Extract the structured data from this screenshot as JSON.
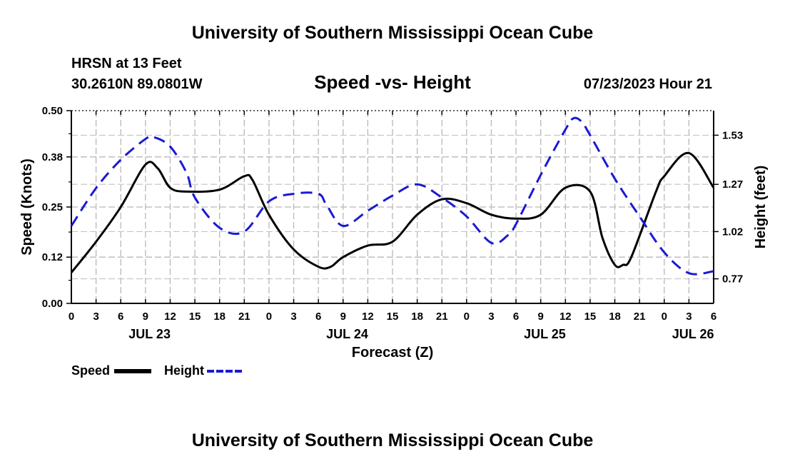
{
  "header": {
    "title_top": "University of Southern Mississippi Ocean Cube",
    "title_bottom": "University of Southern Mississippi Ocean Cube",
    "station": "HRSN at 13 Feet",
    "location": "30.2610N  89.0801W",
    "datetime": "07/23/2023 Hour 21"
  },
  "chart_data": {
    "type": "line",
    "title": "Speed -vs- Height",
    "xlabel": "Forecast (Z)",
    "ylabel": "Speed (Knots)",
    "ylabel_right": "Height (feet)",
    "x_unit": "hours from 00Z JUL 23",
    "xlim": [
      0,
      78
    ],
    "ylim": [
      0,
      0.5
    ],
    "ylim_right": [
      0.64,
      1.66
    ],
    "x_ticks": [
      0,
      3,
      6,
      9,
      12,
      15,
      18,
      21,
      24,
      27,
      30,
      33,
      36,
      39,
      42,
      45,
      48,
      51,
      54,
      57,
      60,
      63,
      66,
      69,
      72,
      75,
      78
    ],
    "x_tick_labels": [
      "0",
      "3",
      "6",
      "9",
      "12",
      "15",
      "18",
      "21",
      "0",
      "3",
      "6",
      "9",
      "12",
      "15",
      "18",
      "21",
      "0",
      "3",
      "6",
      "9",
      "12",
      "15",
      "18",
      "21",
      "0",
      "3",
      "6"
    ],
    "date_labels": [
      {
        "x": 9.5,
        "label": "JUL 23"
      },
      {
        "x": 33.5,
        "label": "JUL 24"
      },
      {
        "x": 57.5,
        "label": "JUL 25"
      },
      {
        "x": 75.5,
        "label": "JUL 26"
      }
    ],
    "y_ticks": [
      0.0,
      0.12,
      0.25,
      0.38,
      0.5
    ],
    "y_tick_labels": [
      "0.00",
      "0.12",
      "0.25",
      "0.38",
      "0.50"
    ],
    "y_ticks_right": [
      0.77,
      1.02,
      1.27,
      1.53
    ],
    "y_tick_labels_right": [
      "0.77",
      "1.02",
      "1.27",
      "1.53"
    ],
    "grid": true,
    "series": [
      {
        "name": "Speed",
        "axis": "left",
        "color": "#000000",
        "dash": "solid",
        "x": [
          0,
          3,
          6,
          9,
          10.5,
          12,
          14,
          18,
          21,
          22,
          24,
          27,
          30,
          31.5,
          33,
          36,
          39,
          42,
          45,
          48,
          51,
          54,
          57,
          60,
          63,
          64.5,
          66,
          67,
          68,
          71,
          72,
          75,
          78
        ],
        "values": [
          0.08,
          0.16,
          0.25,
          0.36,
          0.35,
          0.3,
          0.29,
          0.295,
          0.33,
          0.32,
          0.23,
          0.14,
          0.095,
          0.095,
          0.12,
          0.15,
          0.16,
          0.23,
          0.27,
          0.26,
          0.23,
          0.22,
          0.23,
          0.3,
          0.29,
          0.17,
          0.1,
          0.1,
          0.12,
          0.29,
          0.33,
          0.39,
          0.3
        ]
      },
      {
        "name": "Height",
        "axis": "right",
        "color": "#1a1ad0",
        "dash": "dashed",
        "x": [
          0,
          3,
          6,
          9,
          10,
          12,
          14,
          15,
          18,
          21,
          24,
          27,
          30,
          31,
          33,
          36,
          39,
          42,
          45,
          48,
          51,
          53,
          54,
          57,
          60,
          61,
          62,
          63,
          66,
          69,
          72,
          75,
          78
        ],
        "values": [
          1.05,
          1.25,
          1.4,
          1.51,
          1.52,
          1.47,
          1.33,
          1.2,
          1.04,
          1.02,
          1.18,
          1.22,
          1.22,
          1.16,
          1.05,
          1.13,
          1.21,
          1.27,
          1.2,
          1.1,
          0.96,
          1.0,
          1.06,
          1.32,
          1.56,
          1.62,
          1.6,
          1.53,
          1.3,
          1.1,
          0.91,
          0.8,
          0.81
        ]
      }
    ],
    "legend": [
      {
        "label": "Speed",
        "color": "#000000",
        "dash": "solid"
      },
      {
        "label": "Height",
        "color": "#1a1ad0",
        "dash": "dashed"
      }
    ]
  }
}
